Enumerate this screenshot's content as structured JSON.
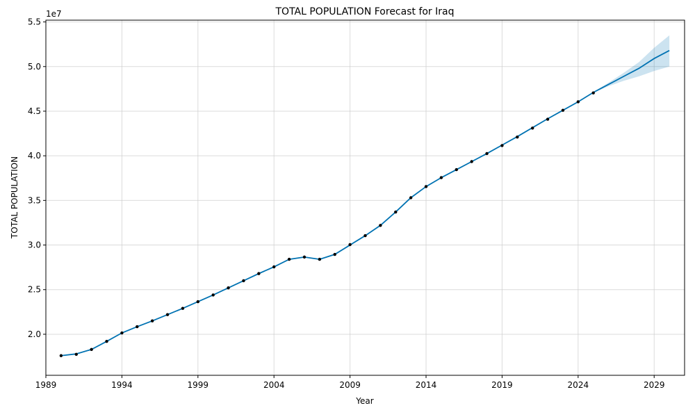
{
  "chart_data": {
    "type": "line",
    "title": "TOTAL POPULATION Forecast for Iraq",
    "xlabel": "Year",
    "ylabel": "TOTAL POPULATION",
    "y_multiplier_label": "1e7",
    "xlim": [
      1989,
      2031
    ],
    "ylim": [
      15400000.0,
      55200000.0
    ],
    "x_ticks": [
      1989,
      1994,
      1999,
      2004,
      2009,
      2014,
      2019,
      2024,
      2029
    ],
    "y_ticks": [
      20000000.0,
      25000000.0,
      30000000.0,
      35000000.0,
      40000000.0,
      45000000.0,
      50000000.0,
      55000000.0
    ],
    "y_tick_labels": [
      "2.0",
      "2.5",
      "3.0",
      "3.5",
      "4.0",
      "4.5",
      "5.0",
      "5.5"
    ],
    "grid": true,
    "colors": {
      "forecast_line": "#0072B2",
      "interval_fill": "#0072B2",
      "observed_points": "#000000"
    },
    "observed": {
      "x": [
        1990,
        1991,
        1992,
        1993,
        1994,
        1995,
        1996,
        1997,
        1998,
        1999,
        2000,
        2001,
        2002,
        2003,
        2004,
        2005,
        2006,
        2007,
        2008,
        2009,
        2010,
        2011,
        2012,
        2013,
        2014,
        2015,
        2016,
        2017,
        2018,
        2019,
        2020,
        2021,
        2022,
        2023,
        2024,
        2025
      ],
      "y": [
        17600000,
        17750000,
        18300000,
        19200000,
        20150000,
        20850000,
        21500000,
        22200000,
        22900000,
        23650000,
        24400000,
        25200000,
        26000000,
        26800000,
        27550000,
        28400000,
        28650000,
        28400000,
        28950000,
        30050000,
        31050000,
        32200000,
        33700000,
        35300000,
        36550000,
        37550000,
        38450000,
        39350000,
        40250000,
        41150000,
        42100000,
        43100000,
        44100000,
        45100000,
        46050000,
        47050000
      ]
    },
    "forecast": {
      "x": [
        1990,
        1991,
        1992,
        1993,
        1994,
        1995,
        1996,
        1997,
        1998,
        1999,
        2000,
        2001,
        2002,
        2003,
        2004,
        2005,
        2006,
        2007,
        2008,
        2009,
        2010,
        2011,
        2012,
        2013,
        2014,
        2015,
        2016,
        2017,
        2018,
        2019,
        2020,
        2021,
        2022,
        2023,
        2024,
        2025,
        2026,
        2027,
        2028,
        2029,
        2030
      ],
      "y": [
        17600000,
        17800000,
        18300000,
        19200000,
        20150000,
        20850000,
        21500000,
        22200000,
        22900000,
        23650000,
        24400000,
        25200000,
        26000000,
        26800000,
        27550000,
        28400000,
        28650000,
        28400000,
        28950000,
        30000000,
        31050000,
        32200000,
        33700000,
        35300000,
        36550000,
        37550000,
        38450000,
        39350000,
        40250000,
        41200000,
        42150000,
        43150000,
        44150000,
        45100000,
        46050000,
        47100000,
        48000000,
        48900000,
        49800000,
        50900000,
        51800000
      ],
      "lower": [
        17600000,
        17800000,
        18300000,
        19200000,
        20150000,
        20850000,
        21500000,
        22200000,
        22900000,
        23650000,
        24400000,
        25200000,
        26000000,
        26800000,
        27550000,
        28400000,
        28650000,
        28400000,
        28950000,
        30000000,
        31050000,
        32200000,
        33700000,
        35300000,
        36550000,
        37550000,
        38450000,
        39350000,
        40250000,
        41200000,
        42150000,
        43150000,
        44150000,
        45100000,
        46050000,
        47050000,
        47800000,
        48400000,
        48900000,
        49500000,
        50000000
      ],
      "upper": [
        17600000,
        17800000,
        18300000,
        19200000,
        20150000,
        20850000,
        21500000,
        22200000,
        22900000,
        23650000,
        24400000,
        25200000,
        26000000,
        26800000,
        27550000,
        28400000,
        28650000,
        28400000,
        28950000,
        30000000,
        31050000,
        32200000,
        33700000,
        35300000,
        36550000,
        37550000,
        38450000,
        39350000,
        40250000,
        41200000,
        42150000,
        43150000,
        44150000,
        45100000,
        46050000,
        47150000,
        48200000,
        49300000,
        50500000,
        52100000,
        53500000
      ]
    }
  }
}
